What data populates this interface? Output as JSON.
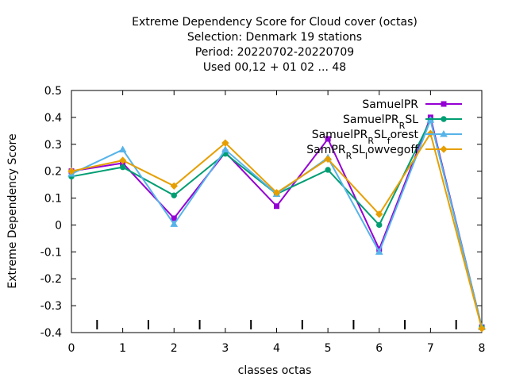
{
  "chart_data": {
    "type": "line",
    "title_lines": [
      "Extreme Dependency Score  for Cloud cover (octas)",
      "Selection: Denmark     19 stations",
      "Period: 20220702-20220709",
      "Used  00,12  + 01 02 ... 48"
    ],
    "xlabel": "classes octas",
    "ylabel": "Extreme Dependency Score",
    "xlim": [
      0,
      8
    ],
    "ylim": [
      -0.4,
      0.5
    ],
    "x_ticks": [
      "0",
      "1",
      "2",
      "3",
      "4",
      "5",
      "6",
      "7",
      "8"
    ],
    "y_ticks": [
      "-0.4",
      "-0.3",
      "-0.2",
      "-0.1",
      "0",
      "0.1",
      "0.2",
      "0.3",
      "0.4",
      "0.5"
    ],
    "x": [
      0,
      1,
      2,
      3,
      4,
      5,
      6,
      7,
      8
    ],
    "legend_position": "top-right",
    "grid": false,
    "series": [
      {
        "name_parts": [
          [
            "SamuelPR",
            ""
          ]
        ],
        "color": "#9400d3",
        "marker": "square",
        "values": [
          0.2,
          0.23,
          0.025,
          0.27,
          0.07,
          0.32,
          -0.09,
          0.4,
          -0.38
        ]
      },
      {
        "name_parts": [
          [
            "SamuelPR",
            ""
          ],
          [
            "R",
            "sub"
          ],
          [
            "SL",
            ""
          ]
        ],
        "color": "#009e73",
        "marker": "circle",
        "values": [
          0.18,
          0.215,
          0.11,
          0.265,
          0.115,
          0.205,
          0.0,
          0.39,
          -0.38
        ]
      },
      {
        "name_parts": [
          [
            "SamuelPR",
            ""
          ],
          [
            "R",
            "sub"
          ],
          [
            "SL",
            ""
          ],
          [
            "f",
            "sub"
          ],
          [
            "orest",
            ""
          ]
        ],
        "color": "#56b4e9",
        "marker": "triangle",
        "values": [
          0.19,
          0.28,
          0.003,
          0.28,
          0.115,
          0.25,
          -0.1,
          0.39,
          -0.38
        ]
      },
      {
        "name_parts": [
          [
            "SamPR",
            ""
          ],
          [
            "R",
            "sub"
          ],
          [
            "SL",
            ""
          ],
          [
            "l",
            "sub"
          ],
          [
            "owvegoff",
            ""
          ]
        ],
        "color": "#e69f00",
        "marker": "diamond",
        "values": [
          0.2,
          0.24,
          0.145,
          0.305,
          0.12,
          0.245,
          0.04,
          0.34,
          -0.385
        ]
      }
    ]
  }
}
